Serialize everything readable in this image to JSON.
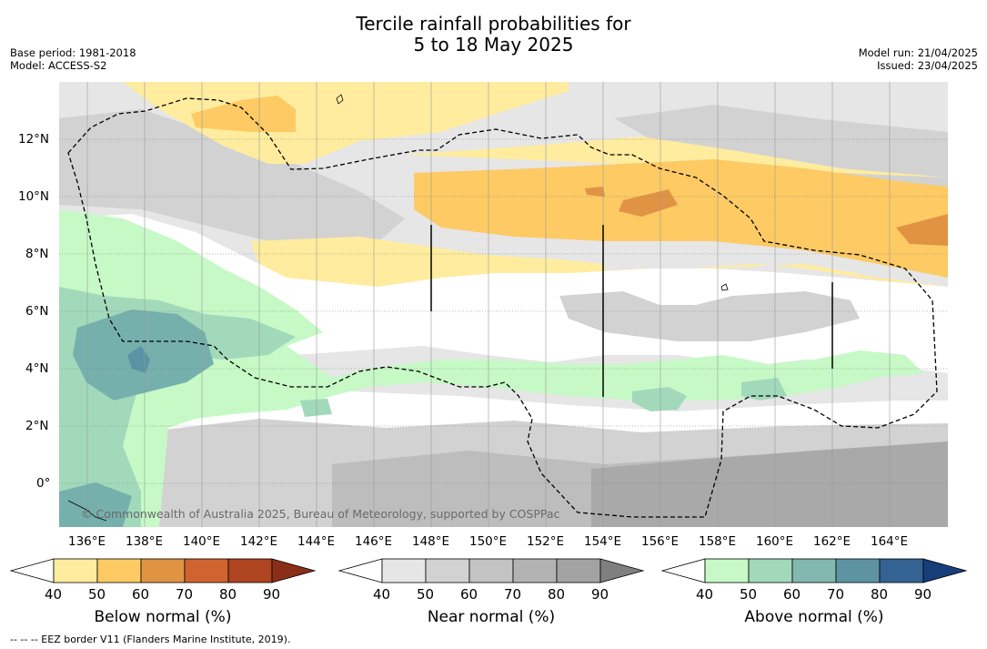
{
  "title": {
    "line1": "Tercile rainfall probabilities for",
    "line2": "5 to 18 May 2025"
  },
  "info_left": {
    "base_period": "Base period: 1981-2018",
    "model": "Model: ACCESS-S2"
  },
  "info_right": {
    "model_run": "Model run: 21/04/2025",
    "issued": "Issued: 23/04/2025"
  },
  "map": {
    "lon_range": [
      135,
      166
    ],
    "lat_range": [
      -1.5,
      14
    ],
    "lon_ticks": [
      "136°E",
      "138°E",
      "140°E",
      "142°E",
      "144°E",
      "146°E",
      "148°E",
      "150°E",
      "152°E",
      "154°E",
      "156°E",
      "158°E",
      "160°E",
      "162°E",
      "164°E"
    ],
    "lat_ticks": [
      "12°N",
      "10°N",
      "8°N",
      "6°N",
      "4°N",
      "2°N",
      "0°"
    ],
    "copyright": "© Commonwealth of Australia 2025, Bureau of Meteorology, supported by COSPPac",
    "colors": {
      "below_40": "#ffec9f",
      "below_50": "#fdca64",
      "below_60": "#e19344",
      "near_40": "#e6e6e6",
      "near_50": "#d2d2d2",
      "near_60": "#bdbdbd",
      "near_70": "#a9a9a9",
      "above_40": "#c6f9c6",
      "above_50": "#a2d9bb",
      "above_60": "#75b0ac",
      "above_70": "#5a93a3"
    }
  },
  "colorbars": [
    {
      "label": "Below normal (%)",
      "ticks": [
        "40",
        "50",
        "60",
        "70",
        "80",
        "90"
      ],
      "colors": [
        "#ffffff",
        "#ffec9f",
        "#fdca64",
        "#e19344",
        "#cf6431",
        "#ae4420",
        "#8a2e17"
      ]
    },
    {
      "label": "Near normal (%)",
      "ticks": [
        "40",
        "50",
        "60",
        "70",
        "80",
        "90"
      ],
      "colors": [
        "#ffffff",
        "#e6e6e6",
        "#d2d2d2",
        "#c3c3c3",
        "#b3b3b3",
        "#a3a3a3",
        "#7f7f7f"
      ]
    },
    {
      "label": "Above normal (%)",
      "ticks": [
        "40",
        "50",
        "60",
        "70",
        "80",
        "90"
      ],
      "colors": [
        "#ffffff",
        "#c6f9c6",
        "#a2d9bb",
        "#82b8b0",
        "#5d93a3",
        "#346293",
        "#163f7a"
      ]
    }
  ],
  "footnote": "--  --  -- EEZ border V11 (Flanders Marine Institute, 2019)."
}
